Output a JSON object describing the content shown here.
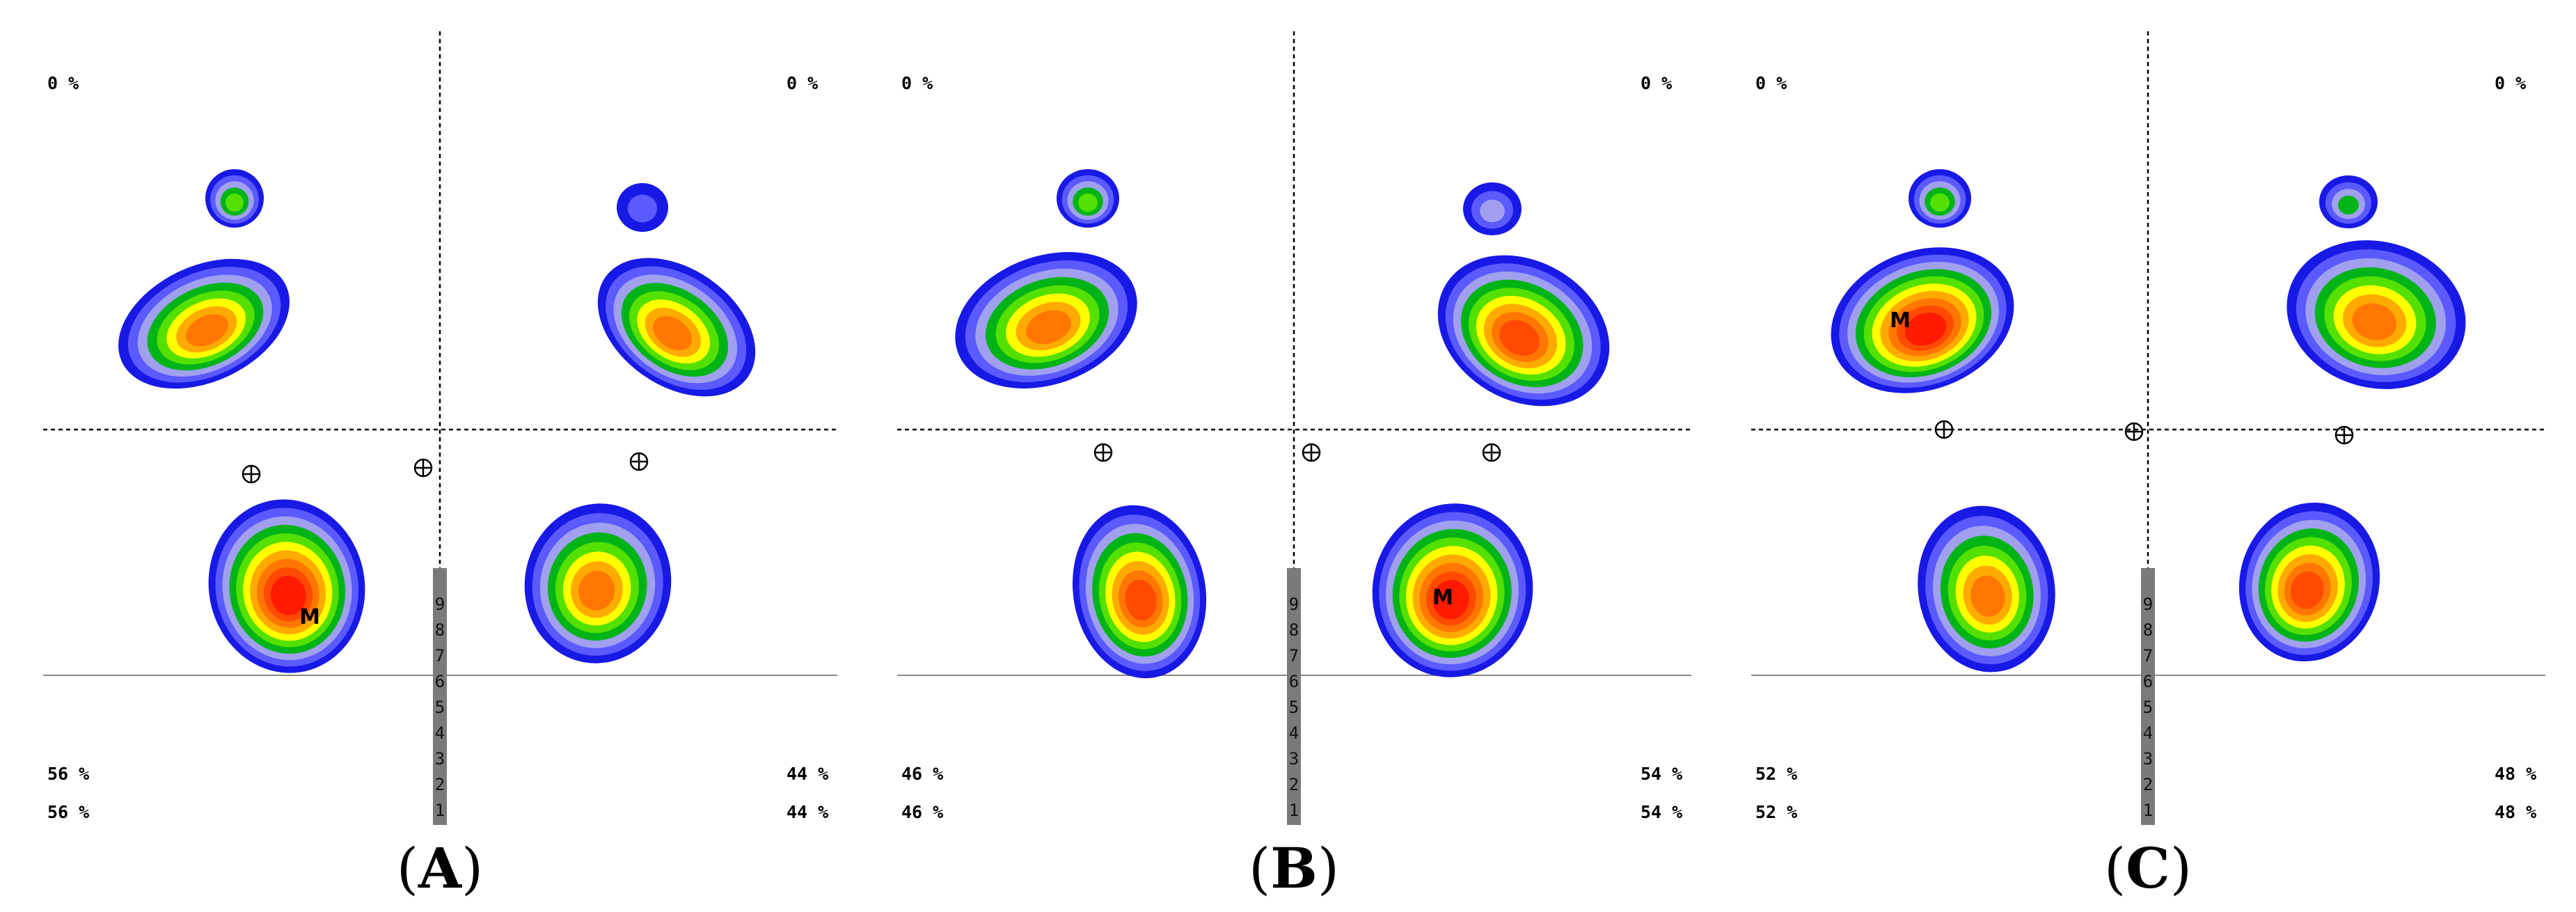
{
  "colors": {
    "levels": [
      "#1919e6",
      "#5a5aff",
      "#a0a0ee",
      "#00b418",
      "#54e000",
      "#ffff00",
      "#ffaa00",
      "#ff7700",
      "#ff4a00",
      "#ff1a00"
    ],
    "grid": "#000000",
    "scale_bar": "#7a7a7a"
  },
  "scale_labels": [
    "1",
    "2",
    "3",
    "4",
    "5",
    "6",
    "7",
    "8",
    "9"
  ],
  "panels": [
    {
      "letter": "A",
      "pct_top_left": "0 %",
      "pct_top_right": "0 %",
      "pct_bottom_left_1": "56 %",
      "pct_bottom_left_2": "56 %",
      "pct_bottom_right_1": "44 %",
      "pct_bottom_right_2": "44 %",
      "cop_icon": "crosshair-circle-icon",
      "max_marker": "M",
      "max_region": "left-forefoot"
    },
    {
      "letter": "B",
      "pct_top_left": "0 %",
      "pct_top_right": "0 %",
      "pct_bottom_left_1": "46 %",
      "pct_bottom_left_2": "46 %",
      "pct_bottom_right_1": "54 %",
      "pct_bottom_right_2": "54 %",
      "cop_icon": "crosshair-circle-icon",
      "max_marker": "M",
      "max_region": "right-forefoot"
    },
    {
      "letter": "C",
      "pct_top_left": "0 %",
      "pct_top_right": "0 %",
      "pct_bottom_left_1": "52 %",
      "pct_bottom_left_2": "52 %",
      "pct_bottom_right_1": "48 %",
      "pct_bottom_right_2": "48 %",
      "cop_icon": "crosshair-circle-icon",
      "max_marker": "M",
      "max_region": "left-rearfoot"
    }
  ]
}
